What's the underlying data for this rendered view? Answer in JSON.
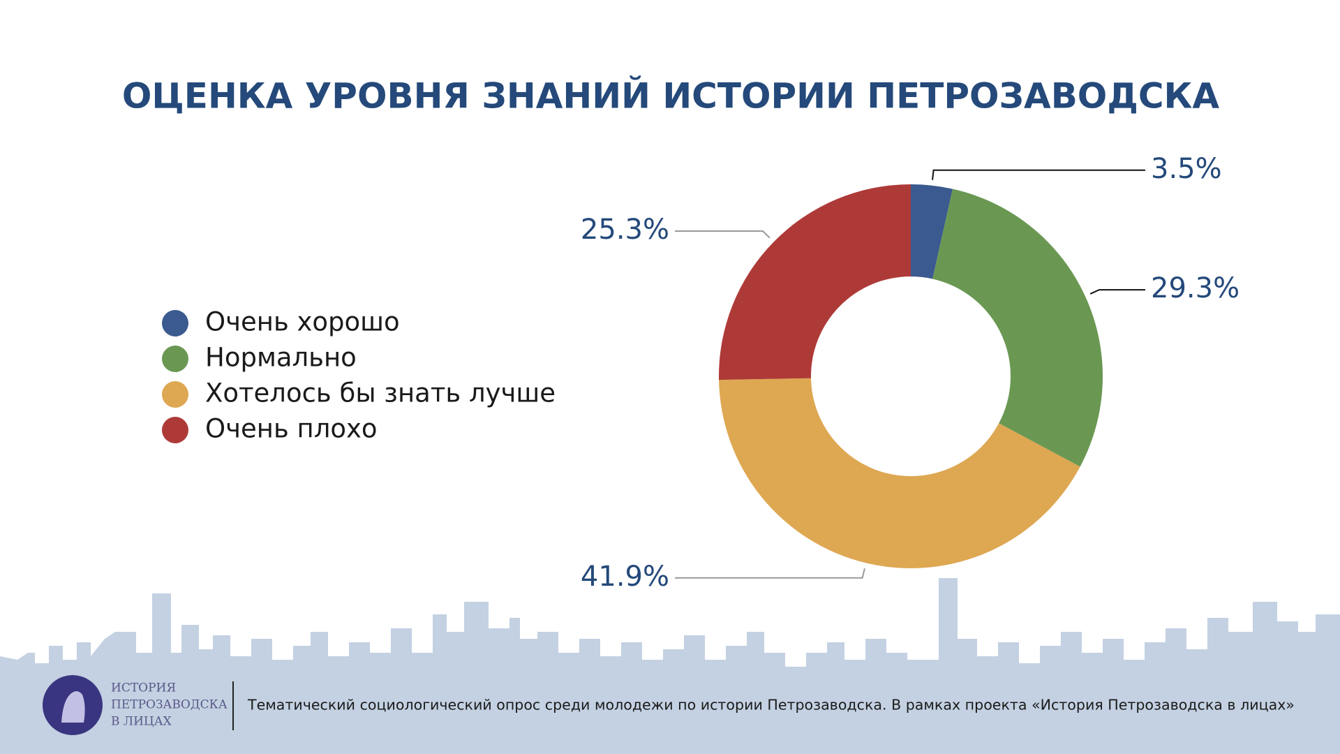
{
  "chart_data": {
    "type": "donut",
    "title": "ОЦЕНКА УРОВНЯ ЗНАНИЙ ИСТОРИИ ПЕТРОЗАВОДСКА",
    "categories": [
      "Очень хорошо",
      "Нормально",
      "Хотелось бы знать лучше",
      "Очень плохо"
    ],
    "values": [
      3.5,
      29.3,
      41.9,
      25.3
    ],
    "value_labels": [
      "3.5%",
      "29.3%",
      "41.9%",
      "25.3%"
    ],
    "colors": [
      "#3b5a8f",
      "#6a9852",
      "#dea752",
      "#ae3a38"
    ],
    "legend": "left"
  },
  "footer": {
    "logo_lines": [
      "ИСТОРИЯ",
      "ПЕТРОЗАВОДСКА",
      "В ЛИЦАХ"
    ],
    "caption": "Тематический социологический опрос среди молодежи по истории Петрозаводска. В рамках проекта «История Петрозаводска в лицах»"
  }
}
